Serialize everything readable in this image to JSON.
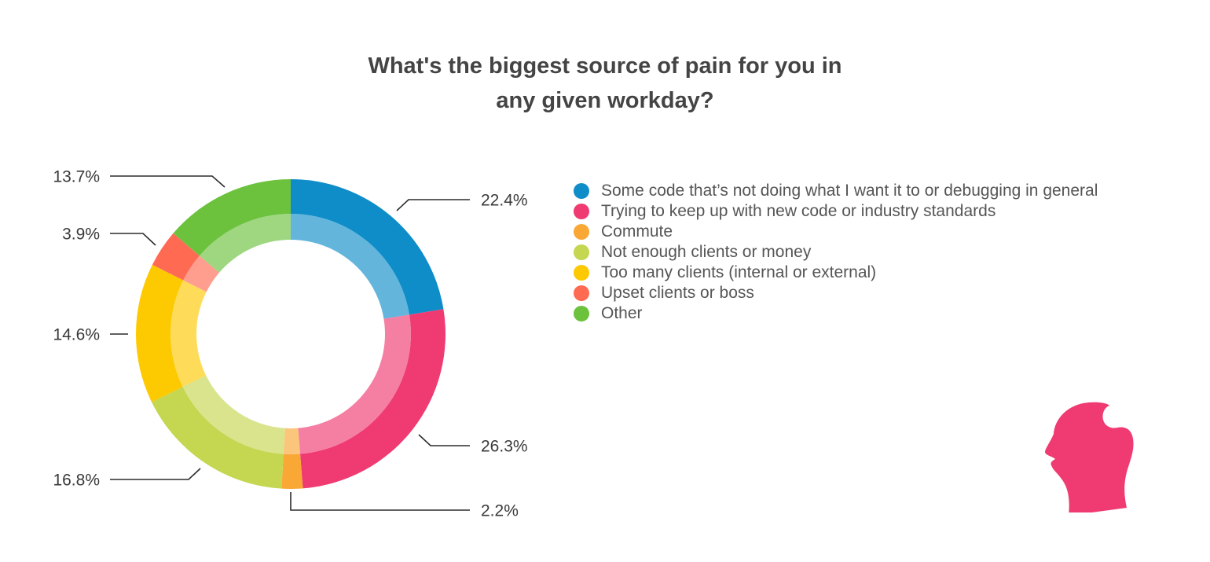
{
  "chart_data": {
    "type": "pie",
    "title_lines": [
      "What's the biggest source of pain for you in",
      "any given workday?"
    ],
    "categories": [
      "Some code that’s not doing what I want it to or debugging in general",
      "Trying to keep up with new code or industry standards",
      "Commute",
      "Not enough clients or money",
      "Too many clients (internal or external)",
      "Upset clients or boss",
      "Other"
    ],
    "values": [
      22.4,
      26.3,
      2.2,
      16.8,
      14.6,
      3.9,
      13.7
    ],
    "value_labels": [
      "22.4%",
      "26.3%",
      "2.2%",
      "16.8%",
      "14.6%",
      "3.9%",
      "13.7%"
    ],
    "colors": [
      "#0f8dc9",
      "#f03a72",
      "#f9a835",
      "#c5d650",
      "#fdc900",
      "#ff6a52",
      "#6cc23d"
    ],
    "legend_position": "right",
    "style": "donut"
  },
  "logo": {
    "icon": "head-profile-icon",
    "color": "#f03a72"
  }
}
